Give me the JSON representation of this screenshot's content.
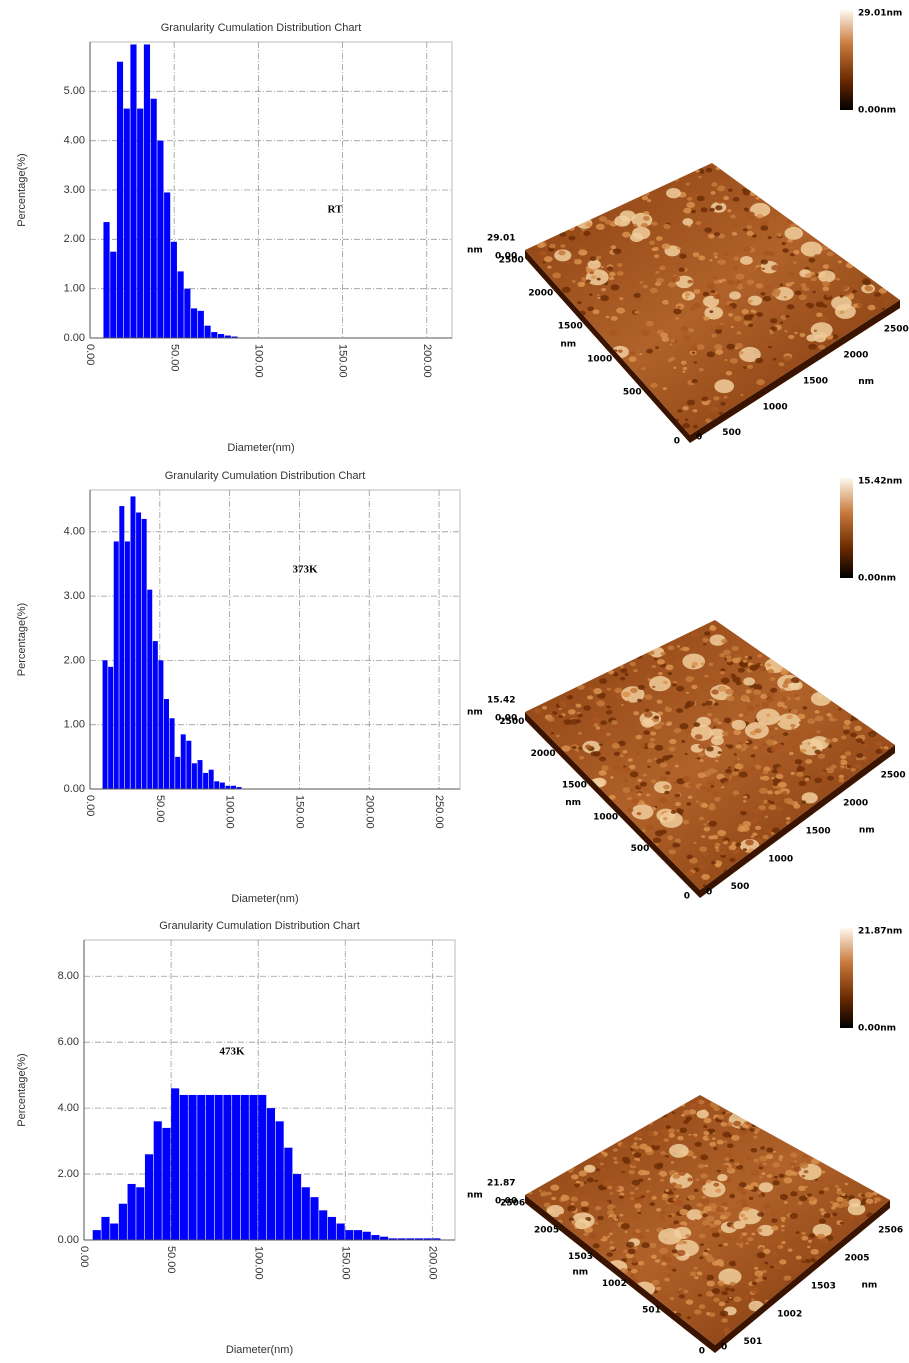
{
  "chart_data": [
    {
      "type": "histogram",
      "title": "Granularity Cumulation Distribution  Chart",
      "x_label": "Diameter(nm)",
      "y_label": "Percentage(%)",
      "annotation": "RT",
      "color": "#0000ff",
      "grid": true,
      "bins": [
        8,
        12,
        16,
        20,
        24,
        28,
        32,
        36,
        40,
        44,
        48,
        52,
        56,
        60,
        64,
        68,
        72,
        76,
        80,
        84,
        88
      ],
      "values": [
        2.35,
        1.75,
        5.6,
        4.65,
        5.95,
        4.65,
        5.95,
        4.85,
        4.0,
        2.95,
        1.95,
        1.35,
        1.0,
        0.6,
        0.55,
        0.25,
        0.12,
        0.08,
        0.05,
        0.03
      ],
      "xlim": [
        0,
        215
      ],
      "ylim": [
        0,
        6
      ],
      "xticks": [
        {
          "value": 0,
          "label": "0.00"
        },
        {
          "value": 50,
          "label": "50.00"
        },
        {
          "value": 100,
          "label": "100.00"
        },
        {
          "value": 150,
          "label": "150.00"
        },
        {
          "value": 200,
          "label": "200.00"
        }
      ],
      "yticks": [
        {
          "value": 0,
          "label": "0.00"
        },
        {
          "value": 1,
          "label": "1.00"
        },
        {
          "value": 2,
          "label": "2.00"
        },
        {
          "value": 3,
          "label": "3.00"
        },
        {
          "value": 4,
          "label": "4.00"
        },
        {
          "value": 5,
          "label": "5.00"
        }
      ]
    },
    {
      "type": "histogram",
      "title": "Granularity Cumulation Distribution  Chart",
      "x_label": "Diameter(nm)",
      "y_label": "Percentage(%)",
      "annotation": "373K",
      "color": "#0000ff",
      "grid": true,
      "bins": [
        9,
        13,
        17,
        21,
        25,
        29,
        33,
        37,
        41,
        45,
        49,
        53,
        57,
        61,
        65,
        69,
        73,
        77,
        81,
        85,
        89,
        93,
        97,
        101,
        105,
        109
      ],
      "values": [
        2.0,
        1.9,
        3.85,
        4.4,
        3.85,
        4.55,
        4.3,
        4.2,
        3.1,
        2.3,
        2.0,
        1.4,
        1.1,
        0.5,
        0.85,
        0.75,
        0.4,
        0.45,
        0.25,
        0.3,
        0.12,
        0.1,
        0.05,
        0.05,
        0.03
      ],
      "xlim": [
        0,
        265
      ],
      "ylim": [
        0,
        4.65
      ],
      "xticks": [
        {
          "value": 0,
          "label": "0.00"
        },
        {
          "value": 50,
          "label": "50.00"
        },
        {
          "value": 100,
          "label": "100.00"
        },
        {
          "value": 150,
          "label": "150.00"
        },
        {
          "value": 200,
          "label": "200.00"
        },
        {
          "value": 250,
          "label": "250.00"
        }
      ],
      "yticks": [
        {
          "value": 0,
          "label": "0.00"
        },
        {
          "value": 1,
          "label": "1.00"
        },
        {
          "value": 2,
          "label": "2.00"
        },
        {
          "value": 3,
          "label": "3.00"
        },
        {
          "value": 4,
          "label": "4.00"
        }
      ]
    },
    {
      "type": "histogram",
      "title": "Granularity Cumulation Distribution  Chart",
      "x_label": "Diameter(nm)",
      "y_label": "Percentage(%)",
      "annotation": "473K",
      "color": "#0000ff",
      "grid": true,
      "bins": [
        5,
        10,
        15,
        20,
        25,
        30,
        35,
        40,
        45,
        50,
        55,
        60,
        65,
        70,
        75,
        80,
        85,
        90,
        95,
        100,
        105,
        110,
        115,
        120,
        125,
        130,
        135,
        140,
        145,
        150,
        155,
        160,
        165,
        170,
        175,
        180,
        185,
        190,
        195,
        200,
        205
      ],
      "values": [
        0.3,
        0.7,
        0.5,
        1.1,
        1.7,
        1.6,
        2.6,
        3.6,
        3.4,
        4.6,
        4.4,
        4.4,
        4.4,
        4.4,
        4.4,
        4.4,
        4.4,
        4.4,
        4.4,
        4.4,
        4.0,
        3.6,
        2.8,
        2.0,
        1.6,
        1.3,
        0.9,
        0.7,
        0.5,
        0.3,
        0.3,
        0.25,
        0.15,
        0.1,
        0.05,
        0.05,
        0.05,
        0.05,
        0.05,
        0.05
      ],
      "xlim": [
        0,
        213
      ],
      "ylim": [
        0,
        9.1
      ],
      "xticks": [
        {
          "value": 0,
          "label": "0.00"
        },
        {
          "value": 50,
          "label": "50.00"
        },
        {
          "value": 100,
          "label": "100.00"
        },
        {
          "value": 150,
          "label": "150.00"
        },
        {
          "value": 200,
          "label": "200.00"
        }
      ],
      "yticks": [
        {
          "value": 0,
          "label": "0.00"
        },
        {
          "value": 2,
          "label": "2.00"
        },
        {
          "value": 4,
          "label": "4.00"
        },
        {
          "value": 6,
          "label": "6.00"
        },
        {
          "value": 8,
          "label": "8.00"
        }
      ]
    }
  ],
  "afm_images": [
    {
      "colorbar_max": "29.01nm",
      "colorbar_min": "0.00nm",
      "z_unit": "nm",
      "z_max": "29.01",
      "z_min": "0.00",
      "y_ticks": [
        "2500",
        "2000",
        "1500",
        "1000",
        "500",
        "0"
      ],
      "y_unit": "nm",
      "x_ticks": [
        "500",
        "1000",
        "1500",
        "2000",
        "2500"
      ],
      "x_unit": "nm"
    },
    {
      "colorbar_max": "15.42nm",
      "colorbar_min": "0.00nm",
      "z_unit": "nm",
      "z_max": "15.42",
      "z_min": "0.00",
      "y_ticks": [
        "2500",
        "2000",
        "1500",
        "1000",
        "500",
        "0"
      ],
      "y_unit": "nm",
      "x_ticks": [
        "500",
        "1000",
        "1500",
        "2000",
        "2500"
      ],
      "x_unit": "nm"
    },
    {
      "colorbar_max": "21.87nm",
      "colorbar_min": "0.00nm",
      "z_unit": "nm",
      "z_max": "21.87",
      "z_min": "0.00",
      "y_ticks": [
        "2506",
        "2005",
        "1503",
        "1002",
        "501",
        "0"
      ],
      "y_unit": "nm",
      "x_ticks": [
        "501",
        "1002",
        "1503",
        "2005",
        "2506"
      ],
      "x_unit": "nm"
    }
  ]
}
